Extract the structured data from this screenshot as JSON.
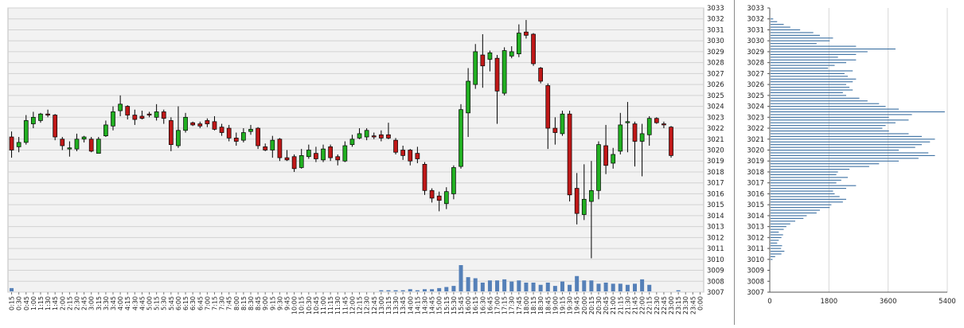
{
  "chart_data": [
    {
      "type": "candlestick",
      "y_ticks": [
        3007,
        3008,
        3009,
        3010,
        3011,
        3012,
        3013,
        3014,
        3015,
        3016,
        3017,
        3018,
        3019,
        3020,
        3021,
        3022,
        3023,
        3024,
        3025,
        3026,
        3027,
        3028,
        3029,
        3030,
        3031,
        3032,
        3033
      ],
      "ylim": [
        3007,
        3033
      ],
      "grid": true,
      "x_ticks": [
        "0:15",
        "0:30",
        "0:45",
        "1:00",
        "1:15",
        "1:30",
        "1:45",
        "2:00",
        "2:15",
        "2:30",
        "2:45",
        "3:00",
        "3:15",
        "3:30",
        "3:45",
        "4:00",
        "4:15",
        "4:30",
        "4:45",
        "5:00",
        "5:15",
        "5:30",
        "5:45",
        "6:00",
        "6:15",
        "6:30",
        "6:45",
        "7:00",
        "7:15",
        "7:30",
        "7:45",
        "8:00",
        "8:15",
        "8:30",
        "8:45",
        "9:00",
        "9:15",
        "9:30",
        "9:45",
        "10:00",
        "10:15",
        "10:30",
        "10:45",
        "11:00",
        "11:15",
        "11:30",
        "11:45",
        "12:00",
        "12:15",
        "12:30",
        "12:45",
        "13:00",
        "13:15",
        "13:30",
        "13:45",
        "14:00",
        "14:15",
        "14:30",
        "14:45",
        "15:00",
        "15:15",
        "15:30",
        "15:45",
        "16:00",
        "16:15",
        "16:30",
        "16:45",
        "17:00",
        "17:15",
        "17:30",
        "17:45",
        "18:00",
        "18:15",
        "18:30",
        "18:45",
        "19:00",
        "19:15",
        "19:30",
        "19:45",
        "20:00",
        "20:15",
        "20:30",
        "20:45",
        "21:00",
        "21:15",
        "21:30",
        "21:45",
        "22:00",
        "22:15",
        "22:30",
        "22:45",
        "23:00",
        "23:15",
        "23:30",
        "23:45",
        "0:00"
      ],
      "colors": {
        "up": "#22b022",
        "down": "#c01818",
        "volume": "#5580b8",
        "grid": "#d2d2d2",
        "plot_bg": "#f2f2f2"
      },
      "candles": [
        {
          "x": "0:15",
          "o": 3021.2,
          "h": 3021.7,
          "l": 3019.3,
          "c": 3020.0
        },
        {
          "x": "0:30",
          "o": 3020.3,
          "h": 3021.2,
          "l": 3019.8,
          "c": 3020.7
        },
        {
          "x": "0:45",
          "o": 3020.7,
          "h": 3023.2,
          "l": 3020.5,
          "c": 3022.7
        },
        {
          "x": "1:00",
          "o": 3022.4,
          "h": 3023.5,
          "l": 3022.0,
          "c": 3023.0
        },
        {
          "x": "1:15",
          "o": 3022.7,
          "h": 3023.4,
          "l": 3022.5,
          "c": 3023.3
        },
        {
          "x": "1:30",
          "o": 3023.3,
          "h": 3023.7,
          "l": 3023.0,
          "c": 3023.2
        },
        {
          "x": "1:45",
          "o": 3023.2,
          "h": 3023.3,
          "l": 3020.9,
          "c": 3021.2
        },
        {
          "x": "2:00",
          "o": 3021.0,
          "h": 3021.2,
          "l": 3020.0,
          "c": 3020.4
        },
        {
          "x": "2:15",
          "o": 3020.1,
          "h": 3020.8,
          "l": 3019.4,
          "c": 3020.2
        },
        {
          "x": "2:30",
          "o": 3020.1,
          "h": 3021.5,
          "l": 3019.9,
          "c": 3021.0
        },
        {
          "x": "2:45",
          "o": 3021.0,
          "h": 3021.3,
          "l": 3020.7,
          "c": 3021.2
        },
        {
          "x": "3:00",
          "o": 3021.0,
          "h": 3021.2,
          "l": 3019.8,
          "c": 3019.9
        },
        {
          "x": "3:15",
          "o": 3019.7,
          "h": 3021.2,
          "l": 3019.7,
          "c": 3021.0
        },
        {
          "x": "3:30",
          "o": 3021.3,
          "h": 3022.7,
          "l": 3021.2,
          "c": 3022.3
        },
        {
          "x": "3:45",
          "o": 3022.2,
          "h": 3024.0,
          "l": 3021.8,
          "c": 3023.5
        },
        {
          "x": "4:00",
          "o": 3023.6,
          "h": 3025.0,
          "l": 3023.1,
          "c": 3024.2
        },
        {
          "x": "4:15",
          "o": 3024.0,
          "h": 3024.1,
          "l": 3022.8,
          "c": 3023.2
        },
        {
          "x": "4:30",
          "o": 3023.2,
          "h": 3023.7,
          "l": 3022.3,
          "c": 3022.8
        },
        {
          "x": "4:45",
          "o": 3023.1,
          "h": 3023.6,
          "l": 3022.8,
          "c": 3022.9
        },
        {
          "x": "5:00",
          "o": 3023.3,
          "h": 3023.5,
          "l": 3023.0,
          "c": 3023.2
        },
        {
          "x": "5:15",
          "o": 3023.0,
          "h": 3024.2,
          "l": 3022.7,
          "c": 3023.5
        },
        {
          "x": "5:30",
          "o": 3023.5,
          "h": 3023.7,
          "l": 3022.4,
          "c": 3022.9
        },
        {
          "x": "5:45",
          "o": 3022.7,
          "h": 3023.0,
          "l": 3019.9,
          "c": 3020.5
        },
        {
          "x": "6:00",
          "o": 3020.4,
          "h": 3024.0,
          "l": 3020.2,
          "c": 3021.8
        },
        {
          "x": "6:15",
          "o": 3021.8,
          "h": 3023.4,
          "l": 3021.6,
          "c": 3023.0
        },
        {
          "x": "6:30",
          "o": 3022.5,
          "h": 3022.6,
          "l": 3022.2,
          "c": 3022.3
        },
        {
          "x": "6:45",
          "o": 3022.4,
          "h": 3022.6,
          "l": 3022.0,
          "c": 3022.2
        },
        {
          "x": "7:00",
          "o": 3022.7,
          "h": 3022.9,
          "l": 3022.1,
          "c": 3022.4
        },
        {
          "x": "7:15",
          "o": 3022.6,
          "h": 3023.1,
          "l": 3021.8,
          "c": 3021.9
        },
        {
          "x": "7:30",
          "o": 3022.1,
          "h": 3022.4,
          "l": 3021.3,
          "c": 3021.6
        },
        {
          "x": "7:45",
          "o": 3022.0,
          "h": 3022.3,
          "l": 3020.8,
          "c": 3021.1
        },
        {
          "x": "8:00",
          "o": 3021.1,
          "h": 3021.6,
          "l": 3020.4,
          "c": 3020.8
        },
        {
          "x": "8:15",
          "o": 3020.9,
          "h": 3022.0,
          "l": 3020.7,
          "c": 3021.6
        },
        {
          "x": "8:30",
          "o": 3021.7,
          "h": 3022.3,
          "l": 3021.4,
          "c": 3021.9
        },
        {
          "x": "8:45",
          "o": 3022.0,
          "h": 3022.1,
          "l": 3020.1,
          "c": 3020.4
        },
        {
          "x": "9:00",
          "o": 3020.3,
          "h": 3020.6,
          "l": 3019.9,
          "c": 3020.0
        },
        {
          "x": "9:15",
          "o": 3020.0,
          "h": 3021.3,
          "l": 3019.3,
          "c": 3020.9
        },
        {
          "x": "9:30",
          "o": 3021.0,
          "h": 3021.1,
          "l": 3019.0,
          "c": 3019.3
        },
        {
          "x": "9:45",
          "o": 3019.3,
          "h": 3020.0,
          "l": 3019.0,
          "c": 3019.1
        },
        {
          "x": "10:00",
          "o": 3019.4,
          "h": 3019.6,
          "l": 3018.0,
          "c": 3018.3
        },
        {
          "x": "10:15",
          "o": 3018.4,
          "h": 3020.1,
          "l": 3018.3,
          "c": 3019.5
        },
        {
          "x": "10:30",
          "o": 3019.4,
          "h": 3020.5,
          "l": 3019.2,
          "c": 3020.0
        },
        {
          "x": "10:45",
          "o": 3019.7,
          "h": 3020.3,
          "l": 3018.9,
          "c": 3019.2
        },
        {
          "x": "11:00",
          "o": 3019.1,
          "h": 3020.5,
          "l": 3018.9,
          "c": 3020.1
        },
        {
          "x": "11:15",
          "o": 3020.3,
          "h": 3020.5,
          "l": 3019.0,
          "c": 3019.3
        },
        {
          "x": "11:30",
          "o": 3019.4,
          "h": 3019.6,
          "l": 3018.6,
          "c": 3019.1
        },
        {
          "x": "11:45",
          "o": 3019.0,
          "h": 3020.8,
          "l": 3018.9,
          "c": 3020.4
        },
        {
          "x": "12:00",
          "o": 3020.5,
          "h": 3021.4,
          "l": 3020.3,
          "c": 3021.0
        },
        {
          "x": "12:15",
          "o": 3021.1,
          "h": 3022.0,
          "l": 3021.0,
          "c": 3021.5
        },
        {
          "x": "12:30",
          "o": 3021.2,
          "h": 3022.0,
          "l": 3020.9,
          "c": 3021.8
        },
        {
          "x": "12:45",
          "o": 3021.3,
          "h": 3021.6,
          "l": 3021.0,
          "c": 3021.2
        },
        {
          "x": "13:00",
          "o": 3021.4,
          "h": 3021.8,
          "l": 3020.8,
          "c": 3021.1
        },
        {
          "x": "13:15",
          "o": 3021.4,
          "h": 3022.5,
          "l": 3021.0,
          "c": 3021.1
        },
        {
          "x": "13:30",
          "o": 3020.9,
          "h": 3021.1,
          "l": 3019.6,
          "c": 3019.8
        },
        {
          "x": "13:45",
          "o": 3020.0,
          "h": 3020.4,
          "l": 3019.1,
          "c": 3019.5
        },
        {
          "x": "14:00",
          "o": 3020.0,
          "h": 3020.1,
          "l": 3018.6,
          "c": 3019.0
        },
        {
          "x": "14:15",
          "o": 3019.7,
          "h": 3020.3,
          "l": 3018.8,
          "c": 3019.2
        },
        {
          "x": "14:30",
          "o": 3018.7,
          "h": 3018.9,
          "l": 3015.9,
          "c": 3016.3
        },
        {
          "x": "14:45",
          "o": 3016.3,
          "h": 3016.5,
          "l": 3015.2,
          "c": 3015.6
        },
        {
          "x": "15:00",
          "o": 3015.8,
          "h": 3016.2,
          "l": 3014.4,
          "c": 3015.4
        },
        {
          "x": "15:15",
          "o": 3015.1,
          "h": 3016.6,
          "l": 3014.6,
          "c": 3016.2
        },
        {
          "x": "15:30",
          "o": 3016.0,
          "h": 3018.6,
          "l": 3015.5,
          "c": 3018.4
        },
        {
          "x": "15:45",
          "o": 3018.5,
          "h": 3024.2,
          "l": 3018.3,
          "c": 3023.7
        },
        {
          "x": "16:00",
          "o": 3023.4,
          "h": 3027.5,
          "l": 3021.2,
          "c": 3026.3
        },
        {
          "x": "16:15",
          "o": 3026.0,
          "h": 3029.7,
          "l": 3025.6,
          "c": 3029.0
        },
        {
          "x": "16:30",
          "o": 3028.7,
          "h": 3030.6,
          "l": 3025.7,
          "c": 3027.7
        },
        {
          "x": "16:45",
          "o": 3028.3,
          "h": 3029.1,
          "l": 3027.2,
          "c": 3028.9
        },
        {
          "x": "17:00",
          "o": 3028.4,
          "h": 3028.7,
          "l": 3022.4,
          "c": 3025.4
        },
        {
          "x": "17:15",
          "o": 3025.2,
          "h": 3029.4,
          "l": 3025.0,
          "c": 3029.1
        },
        {
          "x": "17:30",
          "o": 3028.6,
          "h": 3029.5,
          "l": 3028.4,
          "c": 3029.0
        },
        {
          "x": "17:45",
          "o": 3028.8,
          "h": 3031.5,
          "l": 3028.5,
          "c": 3030.7
        },
        {
          "x": "18:00",
          "o": 3030.8,
          "h": 3031.9,
          "l": 3030.2,
          "c": 3030.5
        },
        {
          "x": "18:15",
          "o": 3030.6,
          "h": 3030.7,
          "l": 3027.7,
          "c": 3027.9
        },
        {
          "x": "18:30",
          "o": 3027.5,
          "h": 3027.6,
          "l": 3026.1,
          "c": 3026.3
        },
        {
          "x": "18:45",
          "o": 3025.9,
          "h": 3026.1,
          "l": 3020.1,
          "c": 3022.0
        },
        {
          "x": "19:00",
          "o": 3022.0,
          "h": 3023.0,
          "l": 3020.5,
          "c": 3021.6
        },
        {
          "x": "19:15",
          "o": 3021.5,
          "h": 3023.6,
          "l": 3021.3,
          "c": 3023.3
        },
        {
          "x": "19:30",
          "o": 3023.3,
          "h": 3023.6,
          "l": 3015.3,
          "c": 3015.9
        },
        {
          "x": "19:45",
          "o": 3016.5,
          "h": 3017.9,
          "l": 3013.2,
          "c": 3014.2
        },
        {
          "x": "20:00",
          "o": 3014.1,
          "h": 3018.7,
          "l": 3013.6,
          "c": 3015.5
        },
        {
          "x": "20:15",
          "o": 3015.3,
          "h": 3019.0,
          "l": 3010.1,
          "c": 3016.3
        },
        {
          "x": "20:30",
          "o": 3016.3,
          "h": 3020.8,
          "l": 3015.5,
          "c": 3020.5
        },
        {
          "x": "20:45",
          "o": 3020.4,
          "h": 3022.3,
          "l": 3017.8,
          "c": 3018.6
        },
        {
          "x": "21:00",
          "o": 3018.8,
          "h": 3020.2,
          "l": 3018.3,
          "c": 3019.6
        },
        {
          "x": "21:15",
          "o": 3019.9,
          "h": 3023.4,
          "l": 3019.6,
          "c": 3022.3
        },
        {
          "x": "21:30",
          "o": 3022.5,
          "h": 3024.4,
          "l": 3019.8,
          "c": 3022.6
        },
        {
          "x": "21:45",
          "o": 3022.4,
          "h": 3022.6,
          "l": 3018.5,
          "c": 3020.8
        },
        {
          "x": "22:00",
          "o": 3020.8,
          "h": 3022.4,
          "l": 3017.6,
          "c": 3021.5
        },
        {
          "x": "22:15",
          "o": 3021.4,
          "h": 3023.1,
          "l": 3020.4,
          "c": 3022.9
        },
        {
          "x": "22:30",
          "o": 3022.9,
          "h": 3023.0,
          "l": 3022.4,
          "c": 3022.5
        },
        {
          "x": "22:45",
          "o": 3022.4,
          "h": 3022.6,
          "l": 3022.0,
          "c": 3022.3
        },
        {
          "x": "23:00",
          "o": 3022.1,
          "h": 3022.2,
          "l": 3019.3,
          "c": 3019.5
        }
      ],
      "volume": [
        3,
        0,
        0,
        0,
        0,
        0,
        0,
        0,
        0,
        0,
        0,
        0,
        0,
        0,
        0,
        0,
        0,
        0,
        0,
        0,
        0,
        0,
        0,
        0,
        0,
        0,
        0,
        0,
        0,
        0,
        0,
        0,
        0,
        0,
        0,
        0,
        0,
        0,
        0,
        0,
        0,
        0,
        0,
        0,
        0,
        0,
        0,
        0,
        0,
        0,
        0,
        1,
        1,
        1,
        1,
        2,
        1,
        2,
        2,
        3,
        4,
        5,
        24,
        13,
        12,
        8,
        10,
        10,
        11,
        9,
        10,
        8,
        8,
        6,
        8,
        5,
        9,
        6,
        14,
        10,
        10,
        7,
        8,
        7,
        7,
        6,
        7,
        11,
        6,
        0,
        0,
        0,
        1,
        0,
        0,
        0
      ],
      "volume_max": 24
    },
    {
      "type": "bar",
      "orientation": "horizontal",
      "x_ticks": [
        "0",
        "1800",
        "3600",
        "5400"
      ],
      "xlim": [
        0,
        5400
      ],
      "y_ticks": [
        3007,
        3008,
        3009,
        3010,
        3011,
        3012,
        3013,
        3014,
        3015,
        3016,
        3017,
        3018,
        3019,
        3020,
        3021,
        3022,
        3023,
        3024,
        3025,
        3026,
        3027,
        3028,
        3029,
        3030,
        3031,
        3032,
        3033
      ],
      "ylim": [
        3007,
        3033
      ],
      "bin_size": 0.25,
      "bins_from": 3010.0,
      "color": "#3a6fa2",
      "values": [
        60,
        140,
        330,
        420,
        320,
        350,
        200,
        250,
        330,
        380,
        250,
        400,
        480,
        600,
        750,
        1000,
        1100,
        1400,
        1500,
        1800,
        1850,
        2200,
        2300,
        2100,
        1950,
        1900,
        2300,
        2600,
        2000,
        2150,
        2350,
        2000,
        2050,
        2400,
        3000,
        3300,
        3900,
        4500,
        5000,
        4800,
        3900,
        4400,
        4600,
        4850,
        5000,
        4600,
        4200,
        3600,
        3400,
        3500,
        3800,
        4200,
        3600,
        4300,
        5300,
        3900,
        3500,
        3300,
        2950,
        2700,
        2300,
        2200,
        2500,
        2400,
        2300,
        2500,
        2600,
        2350,
        2250,
        2500,
        1750,
        1950,
        2300,
        2600,
        2050,
        2600,
        2950,
        3800,
        2600,
        1400,
        1800,
        1900,
        1500,
        1300,
        900,
        600,
        400,
        200,
        80
      ]
    }
  ]
}
